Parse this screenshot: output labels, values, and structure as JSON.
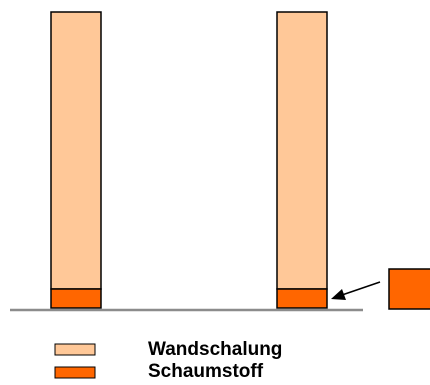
{
  "legend": {
    "items": [
      {
        "key": "formwork",
        "label": "Wandschalung",
        "color": "#FFC898"
      },
      {
        "key": "foam",
        "label": "Schaumstoff",
        "color": "#FF6600"
      }
    ]
  },
  "colors": {
    "outline": "#000000",
    "floor": "#8C8C8C",
    "arrow": "#000000"
  }
}
